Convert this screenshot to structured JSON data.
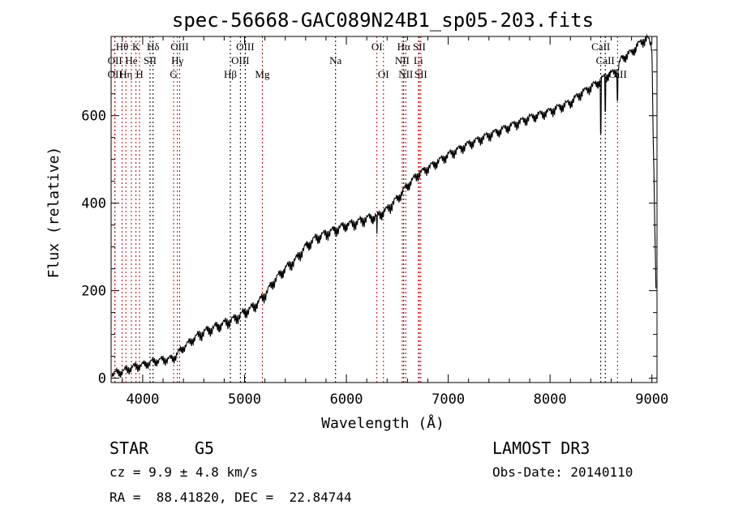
{
  "chart_data": {
    "type": "line",
    "title": "spec-56668-GAC089N24B1_sp05-203.fits",
    "xlabel": "Wavelength (Å)",
    "ylabel": "Flux (relative)",
    "xlim": [
      3690,
      9050
    ],
    "ylim": [
      -10,
      781
    ],
    "xticks": [
      4000,
      5000,
      6000,
      7000,
      8000,
      9000
    ],
    "yticks": [
      0,
      200,
      400,
      600
    ],
    "series": [
      {
        "name": "spectrum",
        "x": [
          3700,
          3800,
          3900,
          4000,
          4100,
          4200,
          4300,
          4400,
          4500,
          4600,
          4700,
          4800,
          4900,
          5000,
          5100,
          5200,
          5300,
          5400,
          5500,
          5600,
          5700,
          5800,
          5900,
          6000,
          6100,
          6200,
          6300,
          6400,
          6500,
          6600,
          6700,
          6800,
          6900,
          7000,
          7200,
          7400,
          7600,
          7800,
          8000,
          8200,
          8300,
          8400,
          8498,
          8542,
          8600,
          8662,
          8700,
          8800,
          8900,
          8960,
          9000,
          9010,
          9040
        ],
        "y": [
          10,
          15,
          25,
          30,
          38,
          42,
          45,
          70,
          90,
          105,
          115,
          125,
          135,
          150,
          165,
          190,
          225,
          250,
          270,
          300,
          320,
          330,
          340,
          350,
          355,
          365,
          370,
          385,
          410,
          440,
          465,
          480,
          495,
          510,
          535,
          555,
          575,
          595,
          610,
          630,
          650,
          665,
          680,
          690,
          695,
          705,
          730,
          745,
          770,
          775,
          760,
          600,
          200
        ]
      }
    ],
    "absorption_dips": [
      {
        "x": 8498,
        "y": 540
      },
      {
        "x": 8542,
        "y": 590
      },
      {
        "x": 8662,
        "y": 615
      },
      {
        "x": 6300,
        "y": 330
      }
    ],
    "lines": [
      {
        "wl": 3727,
        "label": "OII",
        "row": 2,
        "color": "#cc0000"
      },
      {
        "wl": 3727,
        "label": "OII",
        "row": 1,
        "color": "#cc0000"
      },
      {
        "wl": 3798,
        "label": "Hθ",
        "row": 0,
        "color": "#cc0000"
      },
      {
        "wl": 3835,
        "label": "Hη",
        "row": 2,
        "color": "#cc0000"
      },
      {
        "wl": 3889,
        "label": "He",
        "row": 1,
        "color": "#cc0000"
      },
      {
        "wl": 3934,
        "label": "K",
        "row": 0,
        "color": "#cc0000"
      },
      {
        "wl": 3969,
        "label": "H",
        "row": 2,
        "color": "#cc0000"
      },
      {
        "wl": 4072,
        "label": "SII",
        "row": 1,
        "color": "#000000"
      },
      {
        "wl": 4102,
        "label": "Hδ",
        "row": 0,
        "color": "#000000"
      },
      {
        "wl": 4304,
        "label": "G",
        "row": 2,
        "color": "#cc0000"
      },
      {
        "wl": 4341,
        "label": "Hγ",
        "row": 1,
        "color": "#cc0000"
      },
      {
        "wl": 4363,
        "label": "OIII",
        "row": 0,
        "color": "#cc0000"
      },
      {
        "wl": 4861,
        "label": "Hβ",
        "row": 2,
        "color": "#000000"
      },
      {
        "wl": 4959,
        "label": "OIII",
        "row": 1,
        "color": "#000000"
      },
      {
        "wl": 5007,
        "label": "OIII",
        "row": 0,
        "color": "#000000"
      },
      {
        "wl": 5175,
        "label": "Mg",
        "row": 2,
        "color": "#cc0000"
      },
      {
        "wl": 5894,
        "label": "Na",
        "row": 1,
        "color": "#000000"
      },
      {
        "wl": 6300,
        "label": "OI",
        "row": 0,
        "color": "#cc0000"
      },
      {
        "wl": 6364,
        "label": "OI",
        "row": 2,
        "color": "#cc0000"
      },
      {
        "wl": 6548,
        "label": "NII",
        "row": 1,
        "color": "#cc0000"
      },
      {
        "wl": 6563,
        "label": "Hα",
        "row": 0,
        "color": "#000000"
      },
      {
        "wl": 6583,
        "label": "NII",
        "row": 2,
        "color": "#cc0000"
      },
      {
        "wl": 6707,
        "label": "Li",
        "row": 1,
        "color": "#cc0000"
      },
      {
        "wl": 6716,
        "label": "SII",
        "row": 0,
        "color": "#cc0000"
      },
      {
        "wl": 6731,
        "label": "SII",
        "row": 2,
        "color": "#cc0000"
      },
      {
        "wl": 8498,
        "label": "CaII",
        "row": 0,
        "color": "#000000"
      },
      {
        "wl": 8542,
        "label": "CaII",
        "row": 1,
        "color": "#000000"
      },
      {
        "wl": 8662,
        "label": "CaII",
        "row": 2,
        "color": "#cc0000"
      }
    ],
    "grid": false
  },
  "info": {
    "class": "STAR",
    "subclass": "G5",
    "cz": "cz = 9.9 ± 4.8 km/s",
    "radec": "RA =  88.41820, DEC =  22.84744",
    "survey": "LAMOST DR3",
    "obsdate": "Obs-Date: 20140110"
  }
}
